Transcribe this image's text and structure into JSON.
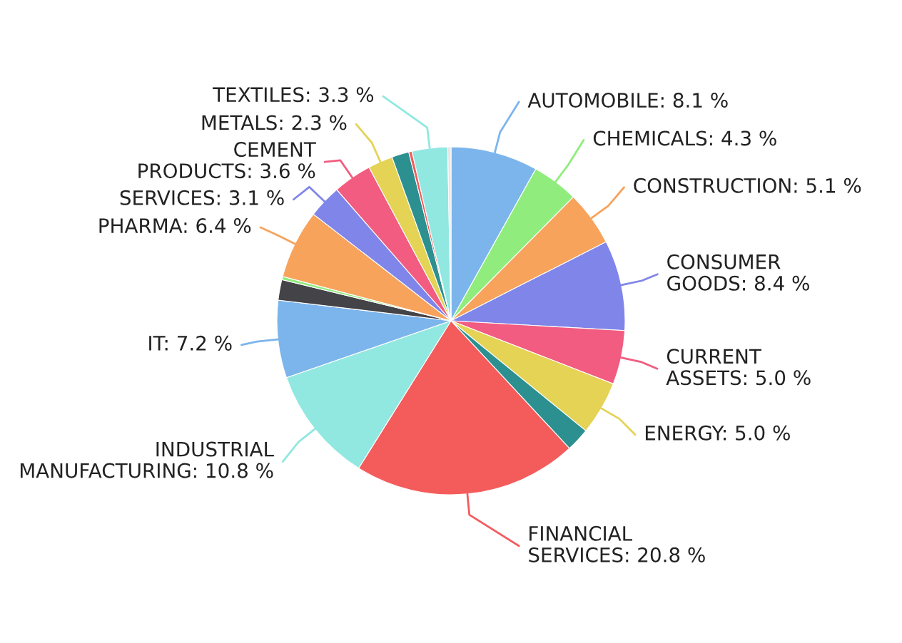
{
  "chart_data": {
    "type": "pie",
    "categories": [
      "AUTOMOBILE",
      "CHEMICALS",
      "CONSTRUCTION",
      "CONSUMER GOODS",
      "CURRENT ASSETS",
      "ENERGY",
      null,
      "FINANCIAL SERVICES",
      "INDUSTRIAL MANUFACTURING",
      "IT",
      null,
      null,
      "PHARMA",
      "SERVICES",
      "CEMENT PRODUCTS",
      "METALS",
      null,
      null,
      "TEXTILES",
      null
    ],
    "values": [
      8.1,
      4.3,
      5.1,
      8.4,
      5.0,
      5.0,
      2.2,
      20.8,
      10.8,
      7.2,
      1.9,
      0.3,
      6.4,
      3.1,
      3.6,
      2.3,
      1.6,
      0.3,
      3.3,
      0.3
    ],
    "value_labels": [
      "8.1 %",
      "4.3 %",
      "5.1 %",
      "8.4 %",
      "5.0 %",
      "5.0 %",
      null,
      "20.8 %",
      "10.8 %",
      "7.2 %",
      null,
      null,
      "6.4 %",
      "3.1 %",
      "3.6 %",
      "2.3 %",
      null,
      null,
      "3.3 %",
      null
    ],
    "colors": [
      "#7cb5ec",
      "#90ed7d",
      "#f7a35c",
      "#8085e9",
      "#f15c80",
      "#e4d354",
      "#2b908f",
      "#f45b5b",
      "#91e8e1",
      "#7cb5ec",
      "#434348",
      "#90ed7d",
      "#f7a35c",
      "#8085e9",
      "#f15c80",
      "#e4d354",
      "#2b908f",
      "#f45b5b",
      "#91e8e1",
      "#e6e6e6"
    ],
    "legend": false
  }
}
